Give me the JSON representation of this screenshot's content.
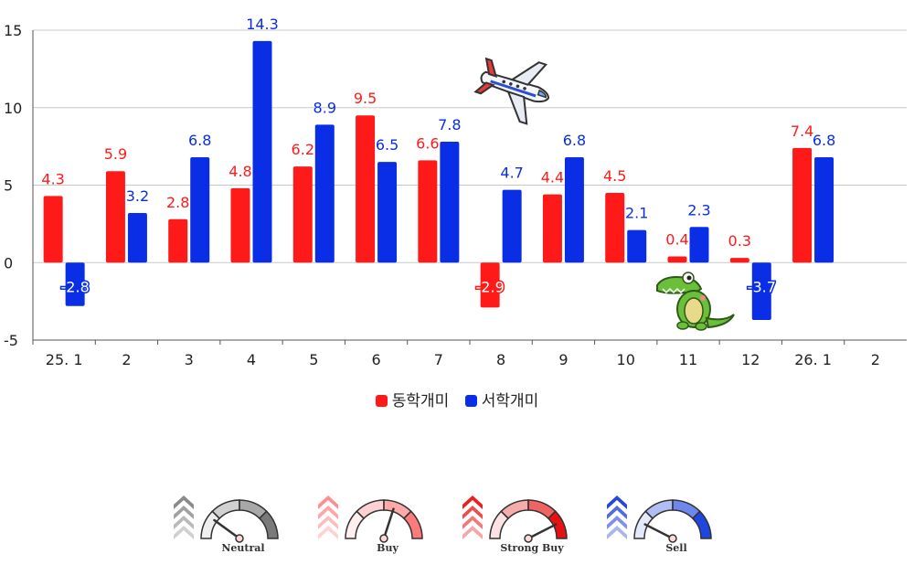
{
  "chart_data": {
    "type": "bar",
    "categories": [
      "25. 1",
      "2",
      "3",
      "4",
      "5",
      "6",
      "7",
      "8",
      "9",
      "10",
      "11",
      "12",
      "26. 1",
      "2"
    ],
    "series": [
      {
        "name": "동학개미",
        "color": "#ff1a1a",
        "values": [
          4.3,
          5.9,
          2.8,
          4.8,
          6.2,
          9.5,
          6.6,
          -2.9,
          4.4,
          4.5,
          0.4,
          0.3,
          7.4,
          null
        ]
      },
      {
        "name": "서학개미",
        "color": "#0a2ee6",
        "values": [
          -2.8,
          3.2,
          6.8,
          14.3,
          8.9,
          6.5,
          7.8,
          4.7,
          6.8,
          2.1,
          2.3,
          -3.7,
          6.8,
          null
        ]
      }
    ],
    "ylim": [
      -5,
      15
    ],
    "yticks": [
      -5,
      0,
      5,
      10,
      15
    ],
    "grid": true,
    "legend": "bottom-center",
    "title": "",
    "xlabel": "",
    "ylabel": ""
  },
  "decorations": {
    "airplane": "airplane-icon",
    "crocodile": "crocodile-icon"
  },
  "gauges": [
    {
      "label": "Neutral",
      "color": "#7a7a7a",
      "chevron": "#8a8a8a",
      "level": 0.2
    },
    {
      "label": "Buy",
      "color": "#ff7b7b",
      "chevron": "#ff8f8f",
      "level": 0.6
    },
    {
      "label": "Strong Buy",
      "color": "#e81010",
      "chevron": "#e82020",
      "level": 0.85
    },
    {
      "label": "Sell",
      "color": "#1e46e0",
      "chevron": "#2846d8",
      "level": 0.15
    }
  ]
}
